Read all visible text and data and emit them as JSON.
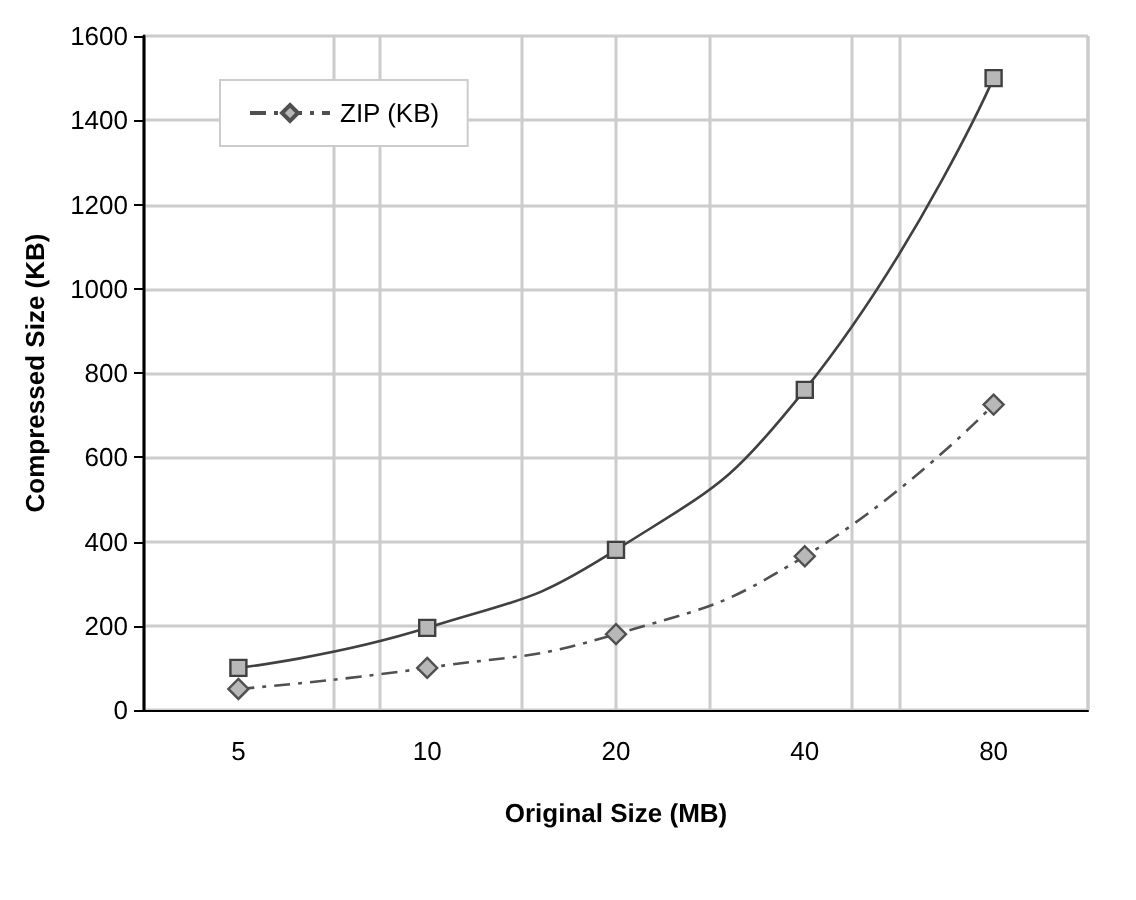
{
  "chart_data": {
    "type": "line",
    "xlabel": "Original Size (MB)",
    "ylabel": "Compressed Size (KB)",
    "categories": [
      "5",
      "10",
      "20",
      "40",
      "80"
    ],
    "series": [
      {
        "name": "ZIP (KB)",
        "color": "#505050",
        "values": [
          50,
          100,
          180,
          365,
          725
        ],
        "marker": "diamond",
        "line_style": "dashed"
      },
      {
        "color": "#404040",
        "values": [
          100,
          195,
          380,
          760,
          1500
        ],
        "marker": "square",
        "line_style": "solid"
      }
    ],
    "ylim": [
      0,
      1600
    ],
    "yticks": [
      0,
      200,
      400,
      600,
      800,
      1000,
      1200,
      1400,
      1600
    ],
    "grid": true,
    "legend": "top left"
  }
}
